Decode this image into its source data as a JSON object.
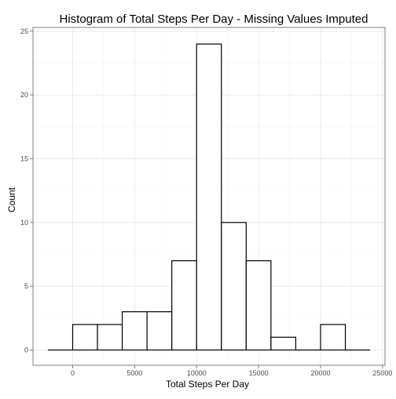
{
  "chart_data": {
    "type": "bar",
    "title": "Histogram of Total Steps Per Day - Missing Values Imputed",
    "xlabel": "Total Steps Per Day",
    "ylabel": "Count",
    "xlim": [
      -3200,
      25200
    ],
    "ylim": [
      -1.2,
      25.3
    ],
    "x_ticks": [
      0,
      5000,
      10000,
      15000,
      20000,
      25000
    ],
    "x_tick_labels": [
      "0",
      "5000",
      "10000",
      "15000",
      "20000",
      "25000"
    ],
    "y_ticks": [
      0,
      5,
      10,
      15,
      20,
      25
    ],
    "y_tick_labels": [
      "0",
      "5",
      "10",
      "15",
      "20",
      "25"
    ],
    "bins": [
      {
        "x0": -2000,
        "x1": 0,
        "count": 0
      },
      {
        "x0": 0,
        "x1": 2000,
        "count": 2
      },
      {
        "x0": 2000,
        "x1": 4000,
        "count": 2
      },
      {
        "x0": 4000,
        "x1": 6000,
        "count": 3
      },
      {
        "x0": 6000,
        "x1": 8000,
        "count": 3
      },
      {
        "x0": 8000,
        "x1": 10000,
        "count": 7
      },
      {
        "x0": 10000,
        "x1": 12000,
        "count": 24
      },
      {
        "x0": 12000,
        "x1": 14000,
        "count": 10
      },
      {
        "x0": 14000,
        "x1": 16000,
        "count": 7
      },
      {
        "x0": 16000,
        "x1": 18000,
        "count": 1
      },
      {
        "x0": 18000,
        "x1": 20000,
        "count": 0
      },
      {
        "x0": 20000,
        "x1": 22000,
        "count": 2
      },
      {
        "x0": 22000,
        "x1": 24000,
        "count": 0
      }
    ],
    "grid": true,
    "colors": {
      "bar_fill": "#ffffff",
      "bar_stroke": "#000000",
      "grid_major": "#ebebeb",
      "grid_minor": "#f5f5f5",
      "panel_border": "#7f7f7f",
      "text": "#000000",
      "tick_label": "#4d4d4d"
    }
  }
}
